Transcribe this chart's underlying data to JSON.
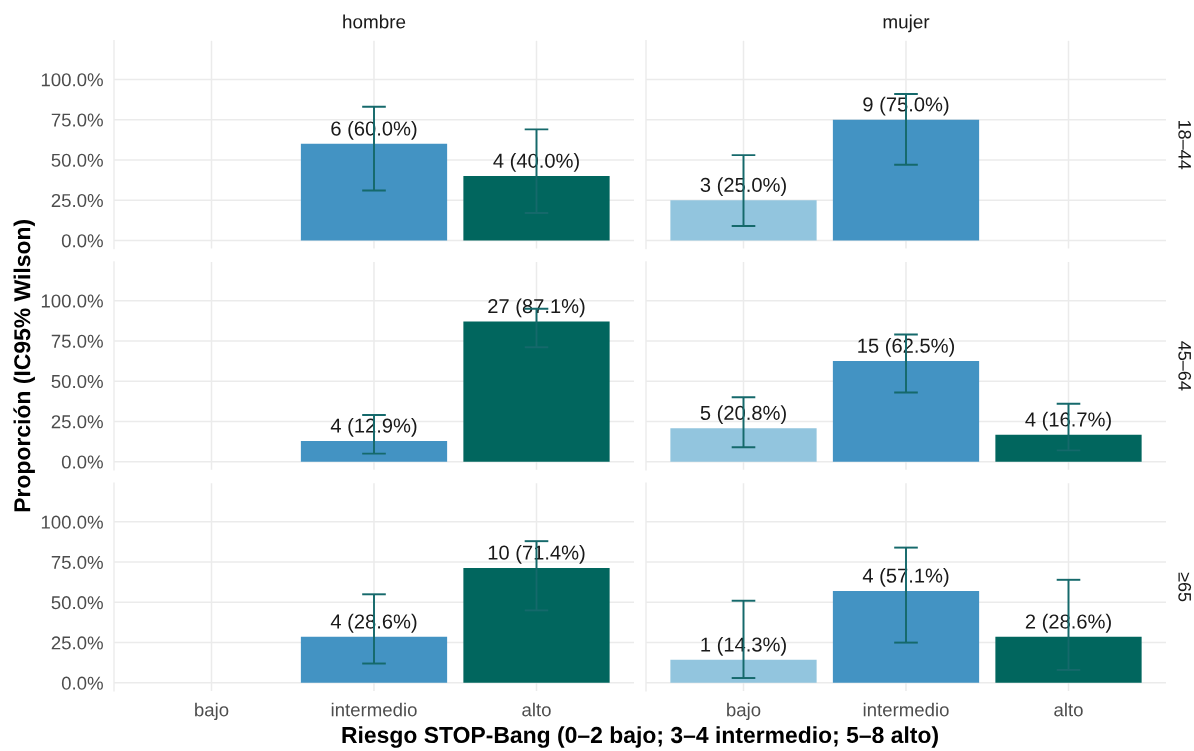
{
  "chart_data": [
    {
      "type": "bar",
      "title": "hombre",
      "categories": [
        "bajo",
        "intermedio",
        "alto"
      ],
      "values": [
        null,
        60.0,
        40.0
      ],
      "colors": [
        null,
        "#4393c3",
        "#01665e"
      ],
      "errors": [
        null,
        [
          31,
          83
        ],
        [
          17,
          69
        ]
      ],
      "value_labels": [
        null,
        "6 (60.0%)",
        "4 (40.0%)"
      ],
      "ylim": [
        -5,
        124
      ],
      "yticks": [
        {
          "value": 0,
          "label": "0.0%"
        },
        {
          "value": 25,
          "label": "25.0%"
        },
        {
          "value": 50,
          "label": "50.0%"
        },
        {
          "value": 75,
          "label": "75.0%"
        },
        {
          "value": 100,
          "label": "100.0%"
        }
      ],
      "grid": true,
      "tick_labels": "y"
    },
    {
      "type": "bar",
      "title": "mujer",
      "categories": [
        "bajo",
        "intermedio",
        "alto"
      ],
      "values": [
        25.0,
        75.0,
        null
      ],
      "colors": [
        "#92c5de",
        "#4393c3",
        null
      ],
      "errors": [
        [
          9,
          53
        ],
        [
          47,
          91
        ],
        null
      ],
      "value_labels": [
        "3 (25.0%)",
        "9 (75.0%)",
        null
      ],
      "annotations": [
        "18–44"
      ],
      "ylim": [
        -5,
        124
      ],
      "yticks": [
        {
          "value": 0,
          "label": "0.0%"
        },
        {
          "value": 25,
          "label": "25.0%"
        },
        {
          "value": 50,
          "label": "50.0%"
        },
        {
          "value": 75,
          "label": "75.0%"
        },
        {
          "value": 100,
          "label": "100.0%"
        }
      ],
      "grid": true,
      "tick_labels": false
    },
    {
      "type": "bar",
      "ylabel": "Proporción (IC95% Wilson)",
      "categories": [
        "bajo",
        "intermedio",
        "alto"
      ],
      "values": [
        null,
        12.9,
        87.1
      ],
      "colors": [
        null,
        "#4393c3",
        "#01665e"
      ],
      "errors": [
        null,
        [
          5,
          29
        ],
        [
          71,
          95
        ]
      ],
      "value_labels": [
        null,
        "4 (12.9%)",
        "27 (87.1%)"
      ],
      "ylim": [
        -5,
        124
      ],
      "yticks": [
        {
          "value": 0,
          "label": "0.0%"
        },
        {
          "value": 25,
          "label": "25.0%"
        },
        {
          "value": 50,
          "label": "50.0%"
        },
        {
          "value": 75,
          "label": "75.0%"
        },
        {
          "value": 100,
          "label": "100.0%"
        }
      ],
      "grid": true,
      "tick_labels": "y"
    },
    {
      "type": "bar",
      "categories": [
        "bajo",
        "intermedio",
        "alto"
      ],
      "values": [
        20.8,
        62.5,
        16.7
      ],
      "colors": [
        "#92c5de",
        "#4393c3",
        "#01665e"
      ],
      "errors": [
        [
          9,
          40
        ],
        [
          43,
          79
        ],
        [
          7,
          36
        ]
      ],
      "value_labels": [
        "5 (20.8%)",
        "15 (62.5%)",
        "4 (16.7%)"
      ],
      "annotations": [
        "45–64"
      ],
      "ylim": [
        -5,
        124
      ],
      "yticks": [
        {
          "value": 0,
          "label": "0.0%"
        },
        {
          "value": 25,
          "label": "25.0%"
        },
        {
          "value": 50,
          "label": "50.0%"
        },
        {
          "value": 75,
          "label": "75.0%"
        },
        {
          "value": 100,
          "label": "100.0%"
        }
      ],
      "grid": true,
      "tick_labels": false
    },
    {
      "type": "bar",
      "xlabel": "Riesgo STOP-Bang (0–2 bajo; 3–4 intermedio; 5–8 alto)",
      "categories": [
        "bajo",
        "intermedio",
        "alto"
      ],
      "values": [
        null,
        28.6,
        71.4
      ],
      "colors": [
        null,
        "#4393c3",
        "#01665e"
      ],
      "errors": [
        null,
        [
          12,
          55
        ],
        [
          45,
          88
        ]
      ],
      "value_labels": [
        null,
        "4 (28.6%)",
        "10 (71.4%)"
      ],
      "ylim": [
        -5,
        124
      ],
      "yticks": [
        {
          "value": 0,
          "label": "0.0%"
        },
        {
          "value": 25,
          "label": "25.0%"
        },
        {
          "value": 50,
          "label": "50.0%"
        },
        {
          "value": 75,
          "label": "75.0%"
        },
        {
          "value": 100,
          "label": "100.0%"
        }
      ],
      "grid": true
    },
    {
      "type": "bar",
      "categories": [
        "bajo",
        "intermedio",
        "alto"
      ],
      "values": [
        14.3,
        57.1,
        28.6
      ],
      "colors": [
        "#92c5de",
        "#4393c3",
        "#01665e"
      ],
      "errors": [
        [
          3,
          51
        ],
        [
          25,
          84
        ],
        [
          8,
          64
        ]
      ],
      "value_labels": [
        "1 (14.3%)",
        "4 (57.1%)",
        "2 (28.6%)"
      ],
      "annotations": [
        "≥65"
      ],
      "ylim": [
        -5,
        124
      ],
      "yticks": [
        {
          "value": 0,
          "label": "0.0%"
        },
        {
          "value": 25,
          "label": "25.0%"
        },
        {
          "value": 50,
          "label": "50.0%"
        },
        {
          "value": 75,
          "label": "75.0%"
        },
        {
          "value": 100,
          "label": "100.0%"
        }
      ],
      "grid": true,
      "tick_labels": "x"
    }
  ]
}
